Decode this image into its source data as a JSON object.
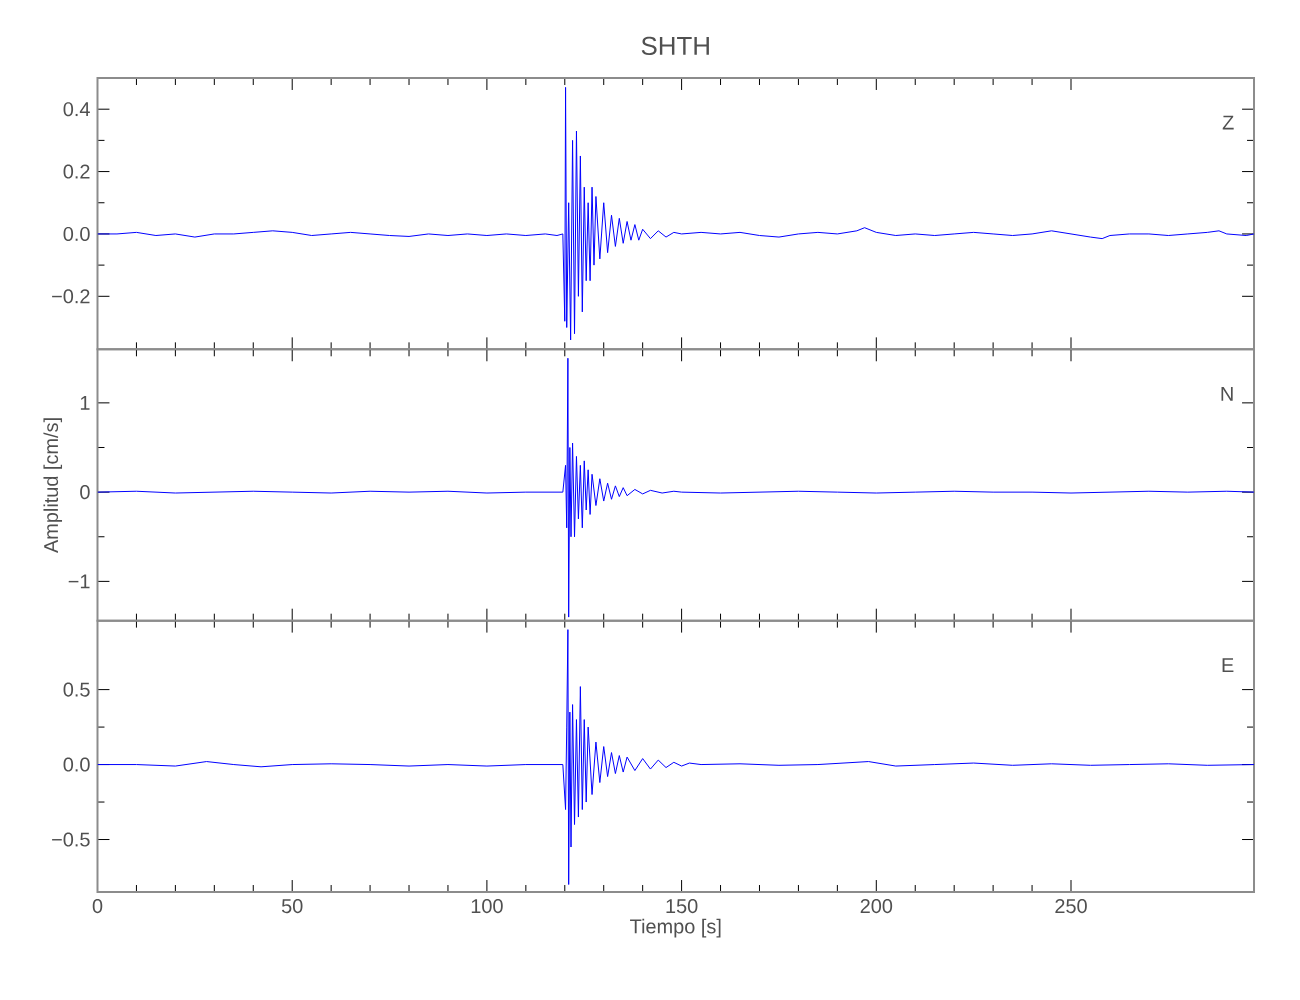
{
  "chart_data": [
    {
      "type": "line",
      "title": "SHTH",
      "annotations": [
        "Z"
      ],
      "xlim": [
        0,
        297
      ],
      "xticks": [
        0,
        50,
        100,
        150,
        200,
        250
      ],
      "ylim": [
        -0.37,
        0.5
      ],
      "yticks": [
        {
          "value": -0.2,
          "label": "−0.2"
        },
        {
          "value": 0,
          "label": "0.0"
        },
        0.2,
        0.4
      ],
      "tick_labels": "y",
      "x": [
        0,
        5,
        10,
        15,
        20,
        25,
        30,
        35,
        40,
        45,
        50,
        55,
        60,
        65,
        70,
        75,
        80,
        85,
        90,
        95,
        100,
        105,
        110,
        115,
        118,
        119.5,
        120.0,
        120.2,
        120.5,
        121,
        121.5,
        122,
        122.5,
        123,
        123.5,
        124,
        124.5,
        125,
        125.5,
        126,
        126.5,
        127,
        127.5,
        128,
        129,
        130,
        131,
        132,
        133,
        134,
        135,
        136,
        137,
        138,
        139,
        140,
        142,
        144,
        146,
        148,
        150,
        155,
        160,
        165,
        170,
        175,
        180,
        185,
        190,
        195,
        197,
        200,
        205,
        210,
        215,
        220,
        225,
        230,
        235,
        240,
        245,
        250,
        255,
        258,
        260,
        265,
        270,
        275,
        280,
        285,
        288,
        290,
        295,
        297
      ],
      "series": [
        {
          "color": "#0000ff",
          "values": [
            0,
            0,
            0.005,
            -0.005,
            0,
            -0.01,
            0,
            0,
            0.005,
            0.01,
            0.005,
            -0.005,
            0,
            0.005,
            0,
            -0.005,
            -0.008,
            0,
            -0.005,
            0,
            -0.005,
            0,
            -0.005,
            0,
            -0.005,
            0,
            -0.28,
            0.47,
            -0.3,
            0.1,
            -0.34,
            0.3,
            -0.32,
            0.33,
            -0.2,
            0.25,
            -0.25,
            0.15,
            -0.15,
            0.1,
            -0.15,
            0.15,
            -0.1,
            0.12,
            -0.08,
            0.1,
            -0.06,
            0.06,
            -0.04,
            0.05,
            -0.03,
            0.04,
            -0.02,
            0.03,
            -0.02,
            0.015,
            -0.015,
            0.01,
            -0.01,
            0.005,
            0,
            0.005,
            0,
            0.005,
            -0.005,
            -0.01,
            0,
            0.005,
            0,
            0.01,
            0.02,
            0.005,
            -0.005,
            0,
            -0.005,
            0,
            0.005,
            0,
            -0.005,
            0,
            0.01,
            0,
            -0.01,
            -0.015,
            -0.005,
            0,
            0,
            -0.005,
            0,
            0.005,
            0.01,
            0,
            -0.005,
            0
          ]
        }
      ]
    },
    {
      "type": "line",
      "ylabel": "Amplitud [cm/s]",
      "annotations": [
        "N"
      ],
      "xlim": [
        0,
        297
      ],
      "xticks": [
        0,
        50,
        100,
        150,
        200,
        250
      ],
      "ylim": [
        -1.44,
        1.6
      ],
      "yticks": [
        {
          "value": -1,
          "label": "−1"
        },
        0,
        1
      ],
      "tick_labels": "y",
      "x": [
        0,
        10,
        20,
        30,
        40,
        50,
        60,
        70,
        80,
        90,
        100,
        110,
        119.5,
        120.2,
        120.5,
        120.8,
        121.0,
        121.3,
        121.6,
        122,
        122.5,
        123,
        123.5,
        124,
        124.5,
        125,
        125.5,
        126,
        126.5,
        127,
        128,
        129,
        130,
        131,
        132,
        133,
        134,
        135,
        136,
        138,
        140,
        142,
        145,
        148,
        150,
        160,
        170,
        180,
        190,
        200,
        210,
        220,
        230,
        240,
        250,
        260,
        270,
        280,
        290,
        297
      ],
      "series": [
        {
          "color": "#0000ff",
          "values": [
            0,
            0.01,
            -0.01,
            0,
            0.01,
            0,
            -0.01,
            0.01,
            0,
            0.01,
            -0.01,
            0,
            0,
            0.3,
            -0.4,
            1.5,
            -1.4,
            0.5,
            -0.5,
            0.55,
            -0.5,
            0.4,
            -0.3,
            0.3,
            -0.4,
            0.35,
            -0.2,
            0.25,
            -0.25,
            0.2,
            -0.15,
            0.15,
            -0.1,
            0.1,
            -0.08,
            0.07,
            -0.05,
            0.05,
            -0.04,
            0.03,
            -0.02,
            0.02,
            -0.01,
            0.01,
            0,
            -0.01,
            0,
            0.01,
            0,
            -0.01,
            0,
            0.01,
            0,
            0,
            -0.01,
            0,
            0.01,
            0,
            0.01,
            0
          ]
        }
      ]
    },
    {
      "type": "line",
      "xlabel": "Tiempo [s]",
      "annotations": [
        "E"
      ],
      "xlim": [
        0,
        297
      ],
      "xticks": [
        0,
        50,
        100,
        150,
        200,
        250
      ],
      "ylim": [
        -0.85,
        0.96
      ],
      "yticks": [
        {
          "value": -0.5,
          "label": "−0.5"
        },
        {
          "value": 0,
          "label": "0.0"
        },
        0.5
      ],
      "x": [
        0,
        10,
        20,
        28,
        35,
        42,
        50,
        60,
        70,
        80,
        90,
        100,
        110,
        119.5,
        120.2,
        120.5,
        120.8,
        121.0,
        121.3,
        121.6,
        122,
        122.5,
        123,
        123.5,
        124,
        124.5,
        125,
        125.5,
        126,
        127,
        128,
        129,
        130,
        131,
        132,
        133,
        134,
        135,
        136,
        138,
        140,
        142,
        144,
        146,
        148,
        150,
        152,
        155,
        165,
        175,
        185,
        198,
        205,
        215,
        225,
        235,
        245,
        255,
        265,
        275,
        285,
        297
      ],
      "series": [
        {
          "color": "#0000ff",
          "values": [
            0,
            0,
            -0.01,
            0.02,
            0,
            -0.015,
            0,
            0.005,
            0,
            -0.01,
            0,
            -0.01,
            0,
            0,
            -0.3,
            0.25,
            0.9,
            -0.8,
            0.35,
            -0.55,
            0.4,
            -0.4,
            0.3,
            -0.35,
            0.52,
            -0.3,
            0.3,
            -0.25,
            0.25,
            -0.2,
            0.15,
            -0.12,
            0.12,
            -0.08,
            0.08,
            -0.06,
            0.06,
            -0.05,
            0.05,
            -0.04,
            0.04,
            -0.03,
            0.03,
            -0.02,
            0.015,
            -0.01,
            0.01,
            0,
            0.005,
            -0.005,
            0,
            0.02,
            -0.01,
            0,
            0.01,
            -0.005,
            0.005,
            -0.005,
            0,
            0.005,
            -0.005,
            0
          ]
        }
      ]
    }
  ]
}
